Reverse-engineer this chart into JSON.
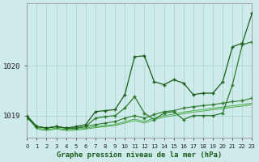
{
  "bg_color": "#ceeaea",
  "grid_color": "#b0d8d8",
  "line_color_dark": "#1a5c1a",
  "line_color_mid": "#2d7a2d",
  "line_color_light": "#4aaa4a",
  "title": "Graphe pression niveau de la mer (hPa)",
  "xlim": [
    0,
    23
  ],
  "ylim": [
    1018.55,
    1021.25
  ],
  "yticks": [
    1019,
    1020
  ],
  "hours": [
    0,
    1,
    2,
    3,
    4,
    5,
    6,
    7,
    8,
    9,
    10,
    11,
    12,
    13,
    14,
    15,
    16,
    17,
    18,
    19,
    20,
    21,
    22,
    23
  ],
  "line1": [
    1019.0,
    1018.78,
    1018.75,
    1018.78,
    1018.75,
    1018.78,
    1018.82,
    1019.08,
    1019.1,
    1019.12,
    1019.42,
    1020.18,
    1020.2,
    1019.68,
    1019.62,
    1019.72,
    1019.65,
    1019.42,
    1019.45,
    1019.45,
    1019.68,
    1020.38,
    1020.45,
    1021.05
  ],
  "line2": [
    1018.95,
    1018.78,
    1018.75,
    1018.78,
    1018.75,
    1018.75,
    1018.78,
    1018.95,
    1018.98,
    1019.0,
    1019.15,
    1019.38,
    1019.05,
    1018.92,
    1019.05,
    1019.08,
    1018.92,
    1019.0,
    1019.0,
    1019.0,
    1019.05,
    1019.62,
    1020.42,
    1020.48
  ],
  "line3": [
    1018.98,
    1018.78,
    1018.75,
    1018.78,
    1018.75,
    1018.75,
    1018.78,
    1018.82,
    1018.85,
    1018.88,
    1018.95,
    1019.0,
    1018.95,
    1019.02,
    1019.08,
    1019.1,
    1019.15,
    1019.18,
    1019.2,
    1019.22,
    1019.25,
    1019.28,
    1019.3,
    1019.35
  ],
  "line4": [
    1018.98,
    1018.75,
    1018.72,
    1018.75,
    1018.72,
    1018.73,
    1018.75,
    1018.78,
    1018.8,
    1018.82,
    1018.88,
    1018.93,
    1018.88,
    1018.95,
    1019.0,
    1019.03,
    1019.07,
    1019.1,
    1019.12,
    1019.15,
    1019.17,
    1019.2,
    1019.22,
    1019.25
  ],
  "line5": [
    1018.98,
    1018.73,
    1018.7,
    1018.73,
    1018.7,
    1018.71,
    1018.73,
    1018.76,
    1018.78,
    1018.8,
    1018.85,
    1018.9,
    1018.85,
    1018.92,
    1018.97,
    1019.0,
    1019.04,
    1019.07,
    1019.09,
    1019.12,
    1019.14,
    1019.17,
    1019.19,
    1019.22
  ]
}
